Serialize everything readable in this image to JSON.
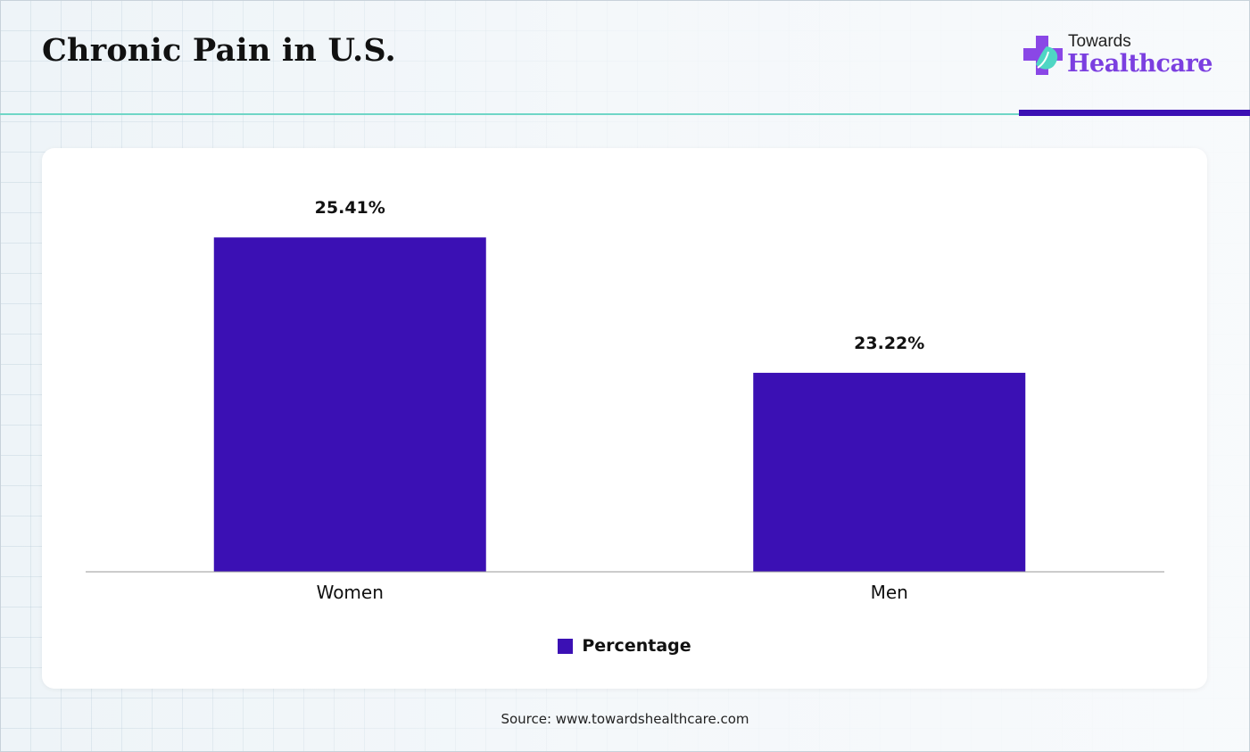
{
  "title": "Chronic Pain in U.S.",
  "logo": {
    "top_text": "Towards",
    "bottom_text": "Healthcare",
    "icon": "medical-cross-leaf-icon"
  },
  "colors": {
    "bar": "#3b10b4",
    "accent_line": "#6fd6c6",
    "logo_purple": "#7b3fe0"
  },
  "chart_data": {
    "type": "bar",
    "categories": [
      "Women",
      "Men"
    ],
    "series": [
      {
        "name": "Percentage",
        "values": [
          25.41,
          23.22
        ],
        "value_labels": [
          "25.41%",
          "23.22%"
        ]
      }
    ],
    "ylim": [
      20.0,
      25.99
    ],
    "grid": false,
    "legend": "bottom-center",
    "xlabel": "",
    "ylabel": ""
  },
  "source": "Source: www.towardshealthcare.com"
}
